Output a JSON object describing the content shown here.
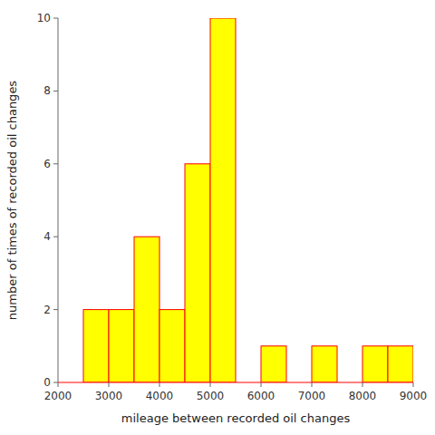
{
  "chart_data": {
    "type": "histogram",
    "xlabel": "mileage between recorded oil changes",
    "ylabel": "number of times of recorded oil changes",
    "bins": [
      2500,
      3000,
      3500,
      4000,
      4500,
      5000,
      5500,
      6000,
      6500,
      7000,
      7500,
      8000,
      8500,
      9000
    ],
    "values": [
      2,
      2,
      4,
      2,
      6,
      10,
      0,
      1,
      0,
      1,
      0,
      1,
      1
    ],
    "color": "#ffff00",
    "xlim": [
      2000,
      9000
    ],
    "ylim": [
      0,
      10
    ],
    "xticks": [
      2000,
      3000,
      4000,
      5000,
      6000,
      7000,
      8000,
      9000
    ],
    "yticks": [
      0,
      2,
      4,
      6,
      8,
      10
    ]
  }
}
